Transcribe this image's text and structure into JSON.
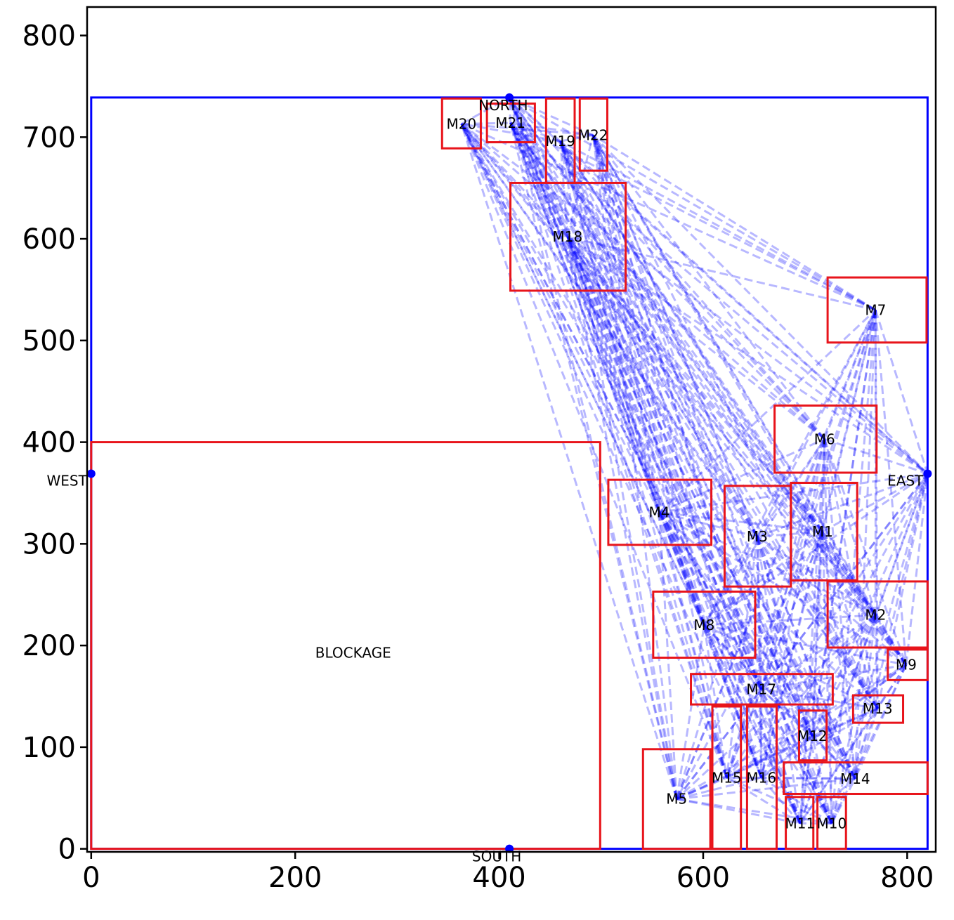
{
  "chart_data": {
    "type": "diagram-scatter",
    "title": "",
    "xlabel": "",
    "ylabel": "",
    "xlim": [
      -4,
      828
    ],
    "ylim": [
      -3,
      828
    ],
    "x_ticks": [
      0,
      200,
      400,
      600,
      800
    ],
    "y_ticks": [
      0,
      100,
      200,
      300,
      400,
      500,
      600,
      700,
      800
    ],
    "grid": false,
    "outline": {
      "x0": 0,
      "y0": 0,
      "x1": 820,
      "y1": 739,
      "color": "#0000ff"
    },
    "terminals": [
      {
        "name": "NORTH",
        "x": 410,
        "y": 739
      },
      {
        "name": "SOUTH",
        "x": 410,
        "y": 0
      },
      {
        "name": "WEST",
        "x": 0,
        "y": 369
      },
      {
        "name": "EAST",
        "x": 820,
        "y": 369
      }
    ],
    "blockage": {
      "name": "BLOCKAGE",
      "x0": 0,
      "y0": 0,
      "x1": 499,
      "y1": 400
    },
    "modules": [
      {
        "name": "M1",
        "x0": 686,
        "y0": 264,
        "x1": 751,
        "y1": 360,
        "cx": 717,
        "cy": 312
      },
      {
        "name": "M2",
        "x0": 722,
        "y0": 198,
        "x1": 820,
        "y1": 263,
        "cx": 769,
        "cy": 230
      },
      {
        "name": "M3",
        "x0": 621,
        "y0": 258,
        "x1": 686,
        "y1": 357,
        "cx": 653,
        "cy": 307
      },
      {
        "name": "M4",
        "x0": 507,
        "y0": 299,
        "x1": 608,
        "y1": 363,
        "cx": 557,
        "cy": 331
      },
      {
        "name": "M5",
        "x0": 541,
        "y0": 0,
        "x1": 607,
        "y1": 98,
        "cx": 574,
        "cy": 49
      },
      {
        "name": "M6",
        "x0": 670,
        "y0": 370,
        "x1": 770,
        "y1": 436,
        "cx": 719,
        "cy": 403
      },
      {
        "name": "M7",
        "x0": 722,
        "y0": 498,
        "x1": 819,
        "y1": 562,
        "cx": 769,
        "cy": 530
      },
      {
        "name": "M8",
        "x0": 551,
        "y0": 188,
        "x1": 651,
        "y1": 253,
        "cx": 601,
        "cy": 220
      },
      {
        "name": "M9",
        "x0": 781,
        "y0": 166,
        "x1": 820,
        "y1": 196,
        "cx": 799,
        "cy": 181
      },
      {
        "name": "M10",
        "x0": 712,
        "y0": 0,
        "x1": 740,
        "y1": 51,
        "cx": 726,
        "cy": 25
      },
      {
        "name": "M11",
        "x0": 681,
        "y0": 0,
        "x1": 708,
        "y1": 51,
        "cx": 695,
        "cy": 25
      },
      {
        "name": "M12",
        "x0": 694,
        "y0": 87,
        "x1": 721,
        "y1": 136,
        "cx": 707,
        "cy": 111
      },
      {
        "name": "M13",
        "x0": 747,
        "y0": 124,
        "x1": 796,
        "y1": 151,
        "cx": 771,
        "cy": 138
      },
      {
        "name": "M14",
        "x0": 679,
        "y0": 54,
        "x1": 820,
        "y1": 85,
        "cx": 749,
        "cy": 69
      },
      {
        "name": "M15",
        "x0": 609,
        "y0": 0,
        "x1": 637,
        "y1": 140,
        "cx": 623,
        "cy": 70
      },
      {
        "name": "M16",
        "x0": 643,
        "y0": 0,
        "x1": 672,
        "y1": 140,
        "cx": 657,
        "cy": 70
      },
      {
        "name": "M17",
        "x0": 588,
        "y0": 142,
        "x1": 727,
        "y1": 172,
        "cx": 657,
        "cy": 157
      },
      {
        "name": "M18",
        "x0": 411,
        "y0": 549,
        "x1": 524,
        "y1": 655,
        "cx": 467,
        "cy": 602
      },
      {
        "name": "M19",
        "x0": 446,
        "y0": 655,
        "x1": 474,
        "y1": 738,
        "cx": 460,
        "cy": 696
      },
      {
        "name": "M20",
        "x0": 344,
        "y0": 689,
        "x1": 382,
        "y1": 738,
        "cx": 363,
        "cy": 713
      },
      {
        "name": "M21",
        "x0": 388,
        "y0": 695,
        "x1": 435,
        "y1": 733,
        "cx": 411,
        "cy": 714
      },
      {
        "name": "M22",
        "x0": 479,
        "y0": 667,
        "x1": 506,
        "y1": 738,
        "cx": 492,
        "cy": 702
      }
    ],
    "nets_style": {
      "color": "#0000ff",
      "opacity": 0.28,
      "dash": "dashed"
    }
  }
}
